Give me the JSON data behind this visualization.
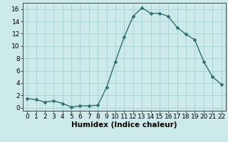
{
  "x": [
    0,
    1,
    2,
    3,
    4,
    5,
    6,
    7,
    8,
    9,
    10,
    11,
    12,
    13,
    14,
    15,
    16,
    17,
    18,
    19,
    20,
    21,
    22
  ],
  "y": [
    1.5,
    1.3,
    0.9,
    1.1,
    0.7,
    0.1,
    0.3,
    0.3,
    0.4,
    3.3,
    7.5,
    11.5,
    14.8,
    16.2,
    15.3,
    15.3,
    14.8,
    13.0,
    11.9,
    11.0,
    7.5,
    5.0,
    3.8
  ],
  "line_color": "#2e7070",
  "marker": "D",
  "marker_size": 2.5,
  "bg_color": "#cceaea",
  "grid_color": "#aad4d4",
  "xlabel": "Humidex (Indice chaleur)",
  "xlim": [
    -0.5,
    22.5
  ],
  "ylim": [
    -0.5,
    17
  ],
  "yticks": [
    0,
    2,
    4,
    6,
    8,
    10,
    12,
    14,
    16
  ],
  "xticks": [
    0,
    1,
    2,
    3,
    4,
    5,
    6,
    7,
    8,
    9,
    10,
    11,
    12,
    13,
    14,
    15,
    16,
    17,
    18,
    19,
    20,
    21,
    22
  ],
  "tick_fontsize": 6.5,
  "label_fontsize": 7.5
}
